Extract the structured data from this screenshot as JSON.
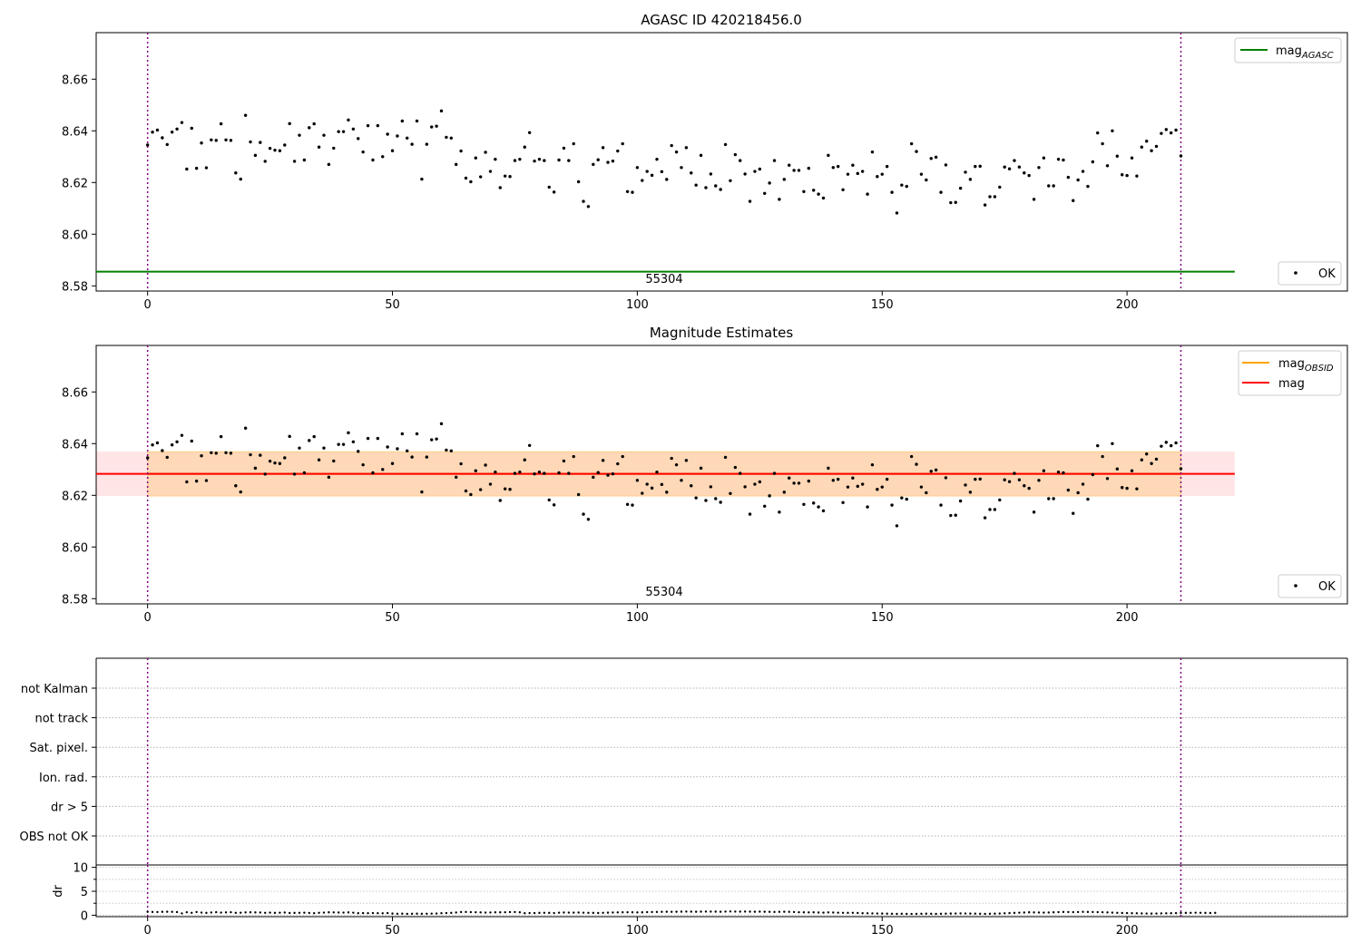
{
  "chart_data": [
    {
      "type": "scatter",
      "title": "AGASC ID 420218456.0",
      "xlim": [
        -10.5,
        245
      ],
      "ylim": [
        8.578,
        8.678
      ],
      "x_ticks": [
        0,
        50,
        100,
        150,
        200
      ],
      "y_ticks": [
        "8.58",
        "8.60",
        "8.62",
        "8.64",
        "8.66"
      ],
      "obsid_label": "55304",
      "vlines": [
        0,
        211
      ],
      "mag_agasc": 8.5855,
      "legend_lines": [
        {
          "name": "mag",
          "sub": "AGASC",
          "color": "#008000"
        }
      ],
      "legend_points": [
        {
          "name": "OK",
          "color": "#000000"
        }
      ]
    },
    {
      "type": "scatter",
      "title": "Magnitude Estimates",
      "xlim": [
        -10.5,
        245
      ],
      "ylim": [
        8.578,
        8.678
      ],
      "x_ticks": [
        0,
        50,
        100,
        150,
        200
      ],
      "y_ticks": [
        "8.58",
        "8.60",
        "8.62",
        "8.64",
        "8.66"
      ],
      "obsid_label": "55304",
      "vlines": [
        0,
        211
      ],
      "mag": 8.6283,
      "band": [
        8.6197,
        8.6369
      ],
      "band_x": [
        -10.5,
        222
      ],
      "legend_lines": [
        {
          "name": "mag",
          "sub": "OBSID",
          "color": "#ffa500"
        },
        {
          "name": "mag",
          "sub": "",
          "color": "#ff0000"
        }
      ],
      "legend_points": [
        {
          "name": "OK",
          "color": "#000000"
        }
      ]
    },
    {
      "type": "scatter",
      "categories": [
        "not Kalman",
        "not track",
        "Sat. pixel.",
        "Ion. rad.",
        "dr > 5",
        "OBS not OK"
      ],
      "xlim": [
        -10.5,
        245
      ],
      "vlines": [
        0,
        211
      ]
    },
    {
      "type": "scatter",
      "ylabel": "dr",
      "xlim": [
        -10.5,
        245
      ],
      "ylim": [
        -0.3,
        10.5
      ],
      "y_ticks": [
        "0",
        "5",
        "10"
      ],
      "x_ticks": [
        0,
        50,
        100,
        150,
        200
      ],
      "vlines": [
        0,
        211
      ]
    }
  ],
  "mag_series": {
    "x_start": 0,
    "values": [
      8.6345,
      8.6395,
      8.6403,
      8.6373,
      8.6347,
      8.6395,
      8.6407,
      8.6432,
      8.6252,
      8.641,
      8.6255,
      8.6353,
      8.6257,
      8.6365,
      8.6363,
      8.6427,
      8.6365,
      8.6363,
      8.6237,
      8.6213,
      8.646,
      8.6357,
      8.6305,
      8.6355,
      8.6282,
      8.6332,
      8.6325,
      8.6323,
      8.6345,
      8.6428,
      8.6282,
      8.6383,
      8.6287,
      8.6412,
      8.6427,
      8.6337,
      8.6383,
      8.627,
      8.6333,
      8.6397,
      8.6397,
      8.6442,
      8.6407,
      8.637,
      8.6318,
      8.642,
      8.6287,
      8.642,
      8.63,
      8.6387,
      8.6323,
      8.638,
      8.6438,
      8.6372,
      8.6348,
      8.6438,
      8.6213,
      8.6348,
      8.6415,
      8.6418,
      8.6477,
      8.6375,
      8.6372,
      8.627,
      8.6322,
      8.6217,
      8.6203,
      8.6295,
      8.6222,
      8.6317,
      8.6243,
      8.629,
      8.618,
      8.6225,
      8.6223,
      8.6285,
      8.629,
      8.6337,
      8.6393,
      8.6283,
      8.629,
      8.6285,
      8.6182,
      8.6163,
      8.6287,
      8.6333,
      8.6285,
      8.635,
      8.6203,
      8.6127,
      8.6107,
      8.627,
      8.6288,
      8.6335,
      8.6278,
      8.6283,
      8.6322,
      8.635,
      8.6165,
      8.6162,
      8.6258,
      8.6208,
      8.6243,
      8.6228,
      8.629,
      8.6242,
      8.6212,
      8.6343,
      8.6318,
      8.6258,
      8.6335,
      8.6237,
      8.619,
      8.6305,
      8.618,
      8.6233,
      8.6187,
      8.6173,
      8.6347,
      8.6207,
      8.6308,
      8.6285,
      8.6233,
      8.6127,
      8.6243,
      8.6252,
      8.6158,
      8.6198,
      8.6285,
      8.6135,
      8.6212,
      8.6267,
      8.6247,
      8.6247,
      8.6165,
      8.6255,
      8.617,
      8.6155,
      8.614,
      8.6305,
      8.6258,
      8.6262,
      8.6172,
      8.6232,
      8.6267,
      8.6235,
      8.6243,
      8.6155,
      8.6318,
      8.6223,
      8.6232,
      8.6262,
      8.6162,
      8.6082,
      8.619,
      8.6185,
      8.635,
      8.632,
      8.6232,
      8.621,
      8.6293,
      8.6298,
      8.6162,
      8.6268,
      8.6122,
      8.6123,
      8.6178,
      8.624,
      8.6212,
      8.6262,
      8.6263,
      8.6113,
      8.6145,
      8.6145,
      8.6182,
      8.626,
      8.6253,
      8.6285,
      8.626,
      8.6237,
      8.6227,
      8.6135,
      8.6258,
      8.6295,
      8.6187,
      8.6187,
      8.629,
      8.6287,
      8.622,
      8.613,
      8.621,
      8.6243,
      8.6185,
      8.628,
      8.6392,
      8.635,
      8.6265,
      8.64,
      8.6302,
      8.623,
      8.6227,
      8.6295,
      8.6225,
      8.6337,
      8.636,
      8.6323,
      8.634,
      8.639,
      8.6405,
      8.6392,
      8.6403,
      8.6303
    ]
  },
  "dr_series": {
    "x_start": 0,
    "values": [
      0.7,
      0.68,
      0.66,
      0.7,
      0.72,
      0.7,
      0.65,
      0.38,
      0.62,
      0.5,
      0.66,
      0.55,
      0.48,
      0.57,
      0.63,
      0.55,
      0.58,
      0.62,
      0.49,
      0.52,
      0.58,
      0.6,
      0.58,
      0.56,
      0.5,
      0.54,
      0.48,
      0.52,
      0.56,
      0.46,
      0.48,
      0.5,
      0.52,
      0.47,
      0.42,
      0.5,
      0.55,
      0.6,
      0.58,
      0.56,
      0.55,
      0.58,
      0.52,
      0.42,
      0.44,
      0.42,
      0.45,
      0.42,
      0.4,
      0.44,
      0.34,
      0.3,
      0.32,
      0.28,
      0.3,
      0.32,
      0.3,
      0.31,
      0.33,
      0.36,
      0.42,
      0.45,
      0.48,
      0.56,
      0.66,
      0.68,
      0.64,
      0.62,
      0.58,
      0.55,
      0.57,
      0.6,
      0.6,
      0.62,
      0.65,
      0.66,
      0.6,
      0.42,
      0.45,
      0.44,
      0.48,
      0.5,
      0.48,
      0.45,
      0.52,
      0.56,
      0.55,
      0.54,
      0.56,
      0.52,
      0.5,
      0.48,
      0.46,
      0.5,
      0.54,
      0.56,
      0.58,
      0.6,
      0.62,
      0.6,
      0.58,
      0.6,
      0.64,
      0.66,
      0.68,
      0.7,
      0.72,
      0.7,
      0.72,
      0.74,
      0.76,
      0.74,
      0.72,
      0.74,
      0.76,
      0.75,
      0.74,
      0.72,
      0.76,
      0.78,
      0.76,
      0.74,
      0.76,
      0.74,
      0.72,
      0.74,
      0.72,
      0.7,
      0.68,
      0.7,
      0.72,
      0.7,
      0.66,
      0.62,
      0.6,
      0.58,
      0.6,
      0.56,
      0.54,
      0.58,
      0.56,
      0.52,
      0.5,
      0.48,
      0.5,
      0.46,
      0.42,
      0.4,
      0.38,
      0.36,
      0.34,
      0.32,
      0.3,
      0.28,
      0.3,
      0.28,
      0.26,
      0.28,
      0.3,
      0.32,
      0.3,
      0.28,
      0.3,
      0.32,
      0.34,
      0.36,
      0.38,
      0.36,
      0.34,
      0.32,
      0.3,
      0.28,
      0.3,
      0.32,
      0.36,
      0.4,
      0.44,
      0.48,
      0.52,
      0.56,
      0.6,
      0.58,
      0.56,
      0.54,
      0.56,
      0.6,
      0.64,
      0.68,
      0.66,
      0.64,
      0.66,
      0.7,
      0.68,
      0.66,
      0.64,
      0.62,
      0.58,
      0.54,
      0.5,
      0.46,
      0.44,
      0.42,
      0.4,
      0.38,
      0.36,
      0.34,
      0.36,
      0.38,
      0.4,
      0.42,
      0.44,
      0.46,
      0.48,
      0.5,
      0.52,
      0.5,
      0.48,
      0.46,
      0.48
    ]
  }
}
